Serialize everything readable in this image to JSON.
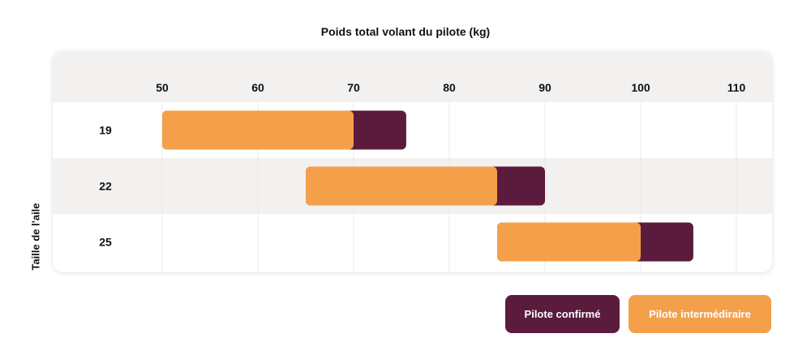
{
  "chart_data": {
    "type": "bar",
    "orientation": "horizontal-range",
    "title": "Poids total volant du pilote (kg)",
    "xlabel": "Poids total volant du pilote (kg)",
    "ylabel": "Taille de l'aile",
    "xlim": [
      50,
      110
    ],
    "x_ticks": [
      "50",
      "60",
      "70",
      "80",
      "90",
      "100",
      "110"
    ],
    "categories": [
      "19",
      "22",
      "25"
    ],
    "series": [
      {
        "name": "Pilote intermédiraire",
        "color": "#f4a04b",
        "ranges": [
          [
            50,
            70
          ],
          [
            65,
            85
          ],
          [
            85,
            100
          ]
        ]
      },
      {
        "name": "Pilote confirmé",
        "color": "#5a1b3d",
        "ranges": [
          [
            50,
            75.5
          ],
          [
            65,
            90
          ],
          [
            85,
            105.5
          ]
        ]
      }
    ],
    "grid": true,
    "legend_position": "bottom-right"
  },
  "legend": {
    "confirmed_label": "Pilote confirmé",
    "intermediate_label": "Pilote intermédiraire"
  }
}
